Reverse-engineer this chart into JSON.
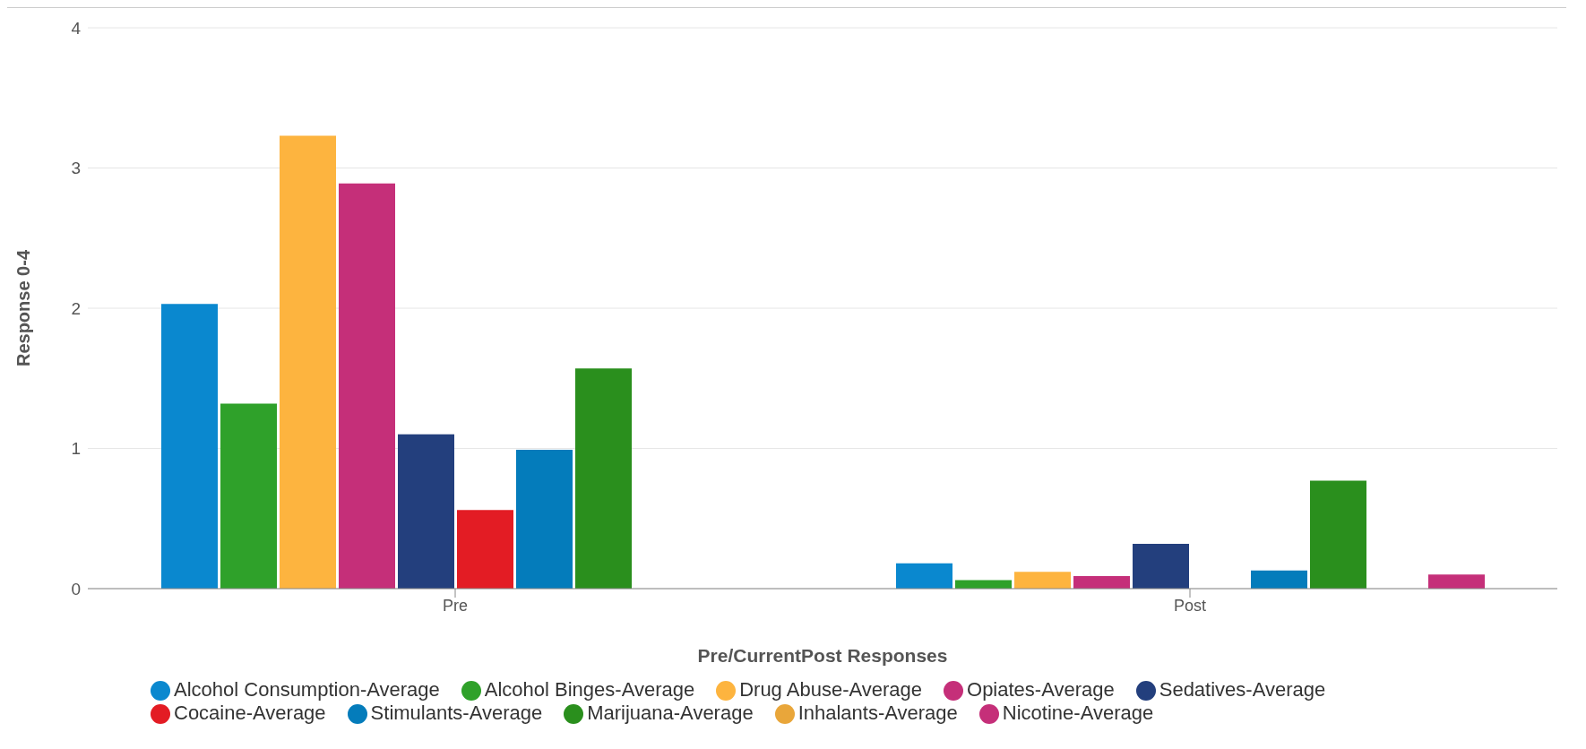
{
  "chart_data": {
    "type": "bar",
    "xlabel": "Pre/CurrentPost Responses",
    "ylabel": "Response 0-4",
    "categories": [
      "Pre",
      "Post"
    ],
    "series": [
      {
        "name": "Alcohol Consumption-Average",
        "color": "#0a88cf",
        "values": [
          2.03,
          0.18
        ]
      },
      {
        "name": "Alcohol Binges-Average",
        "color": "#2fa12a",
        "values": [
          1.32,
          0.06
        ]
      },
      {
        "name": "Drug Abuse-Average",
        "color": "#fdb43f",
        "values": [
          3.23,
          0.12
        ]
      },
      {
        "name": "Opiates-Average",
        "color": "#c52f79",
        "values": [
          2.89,
          0.09
        ]
      },
      {
        "name": "Sedatives-Average",
        "color": "#233f7d",
        "values": [
          1.1,
          0.32
        ]
      },
      {
        "name": "Cocaine-Average",
        "color": "#e31c24",
        "values": [
          0.56,
          0
        ]
      },
      {
        "name": "Stimulants-Average",
        "color": "#047cbb",
        "values": [
          0.99,
          0.13
        ]
      },
      {
        "name": "Marijuana-Average",
        "color": "#2a8f1d",
        "values": [
          1.57,
          0.77
        ]
      },
      {
        "name": "Inhalants-Average",
        "color": "#e9a63a",
        "values": [
          0,
          0
        ]
      },
      {
        "name": "Nicotine-Average",
        "color": "#c52f79",
        "values": [
          0,
          0.1
        ]
      }
    ],
    "ylim": [
      0,
      4
    ],
    "yticks": [
      0,
      1,
      2,
      3,
      4
    ],
    "grid": "y",
    "legend": "bottom"
  }
}
